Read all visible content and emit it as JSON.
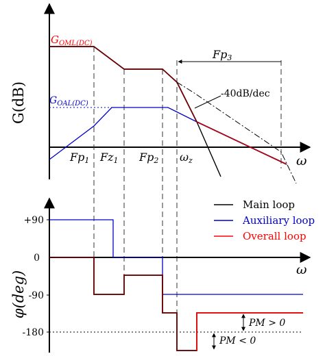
{
  "top_plot": {
    "y_axis_label": "G(dB)",
    "x_axis_symbol": "ω",
    "oml_dc_label": "G",
    "oml_dc_sub": "OML(DC)",
    "oal_dc_label": "G",
    "oal_dc_sub": "OAL(DC)",
    "slope_annotation": "-40dB/dec",
    "fp3_label": "Fp",
    "fp3_sub": "3",
    "ticks": [
      {
        "main": "Fp",
        "sub": "1"
      },
      {
        "main": "Fz",
        "sub": "1"
      },
      {
        "main": "Fp",
        "sub": "2"
      },
      {
        "main": "ω",
        "sub": "z"
      }
    ]
  },
  "bottom_plot": {
    "y_axis_label": "φ(deg)",
    "x_axis_symbol": "ω",
    "y_ticks": [
      "+90",
      "0",
      "-90",
      "-180"
    ],
    "pm_positive": "PM > 0",
    "pm_negative": "PM < 0",
    "legend": [
      {
        "label": "Main loop",
        "color": "#000000"
      },
      {
        "label": "Auxiliary loop",
        "color": "#0000cc"
      },
      {
        "label": "Overall loop",
        "color": "#ff0000"
      }
    ]
  },
  "colors": {
    "main": "#000000",
    "auxiliary": "#0000cc",
    "overall": "#ff0000",
    "overall_dark": "#6a0000"
  }
}
